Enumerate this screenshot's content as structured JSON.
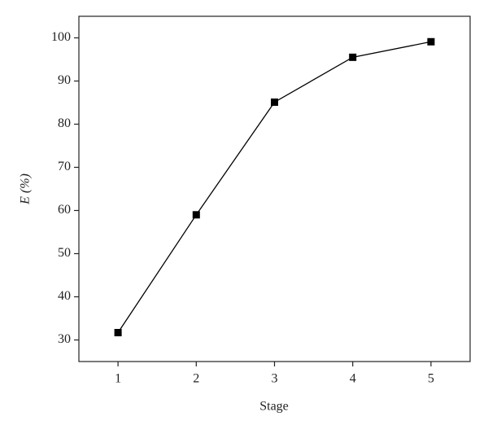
{
  "chart_data": {
    "type": "line",
    "x": [
      1,
      2,
      3,
      4,
      5
    ],
    "series": [
      {
        "color": "#000000",
        "values": [
          31.7,
          59,
          85.1,
          95.5,
          99.1
        ]
      }
    ],
    "xlabel": "Stage",
    "ylabel": "E (%)",
    "xlim": [
      0.5,
      5.5
    ],
    "xticks": [
      1,
      2,
      3,
      4,
      5
    ],
    "ylim": [
      25,
      105
    ],
    "yticks": [
      30,
      40,
      50,
      60,
      70,
      80,
      90,
      100
    ]
  }
}
